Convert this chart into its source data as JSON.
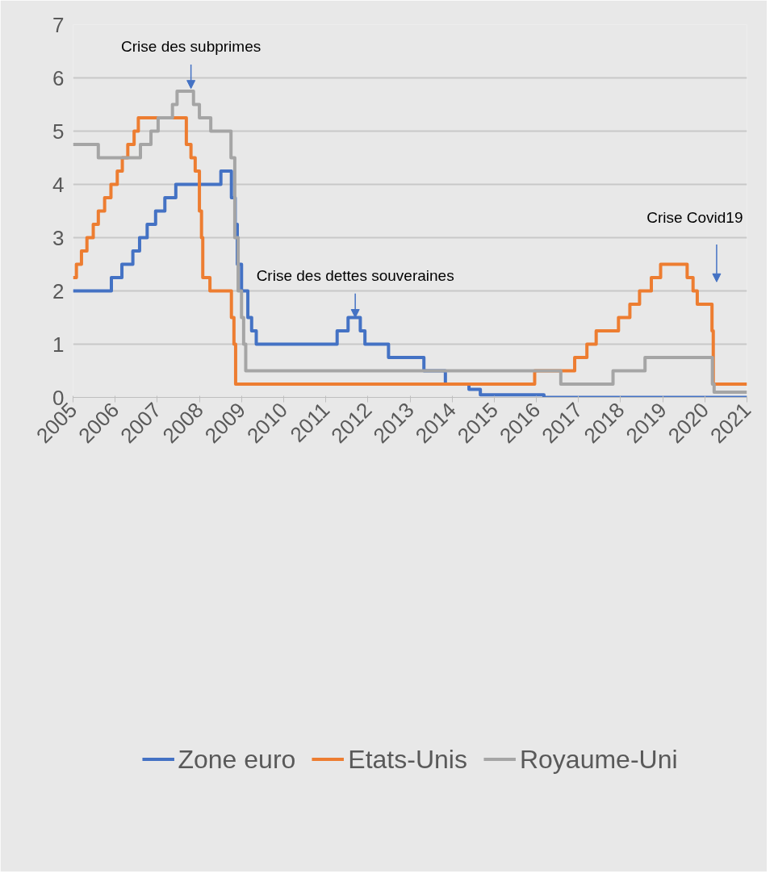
{
  "chart_data": {
    "type": "step",
    "xlim": [
      2005,
      2021
    ],
    "ylim": [
      0,
      7
    ],
    "xticks": [
      2005,
      2006,
      2007,
      2008,
      2009,
      2010,
      2011,
      2012,
      2013,
      2014,
      2015,
      2016,
      2017,
      2018,
      2019,
      2020,
      2021
    ],
    "yticks": [
      0,
      1,
      2,
      3,
      4,
      5,
      6,
      7
    ],
    "grid": "y",
    "legend": "bottom",
    "line_style": "solid",
    "marker": "none",
    "annotations": [
      {
        "text": "Crise des subprimes",
        "x": 2007.8,
        "y": 5.8
      },
      {
        "text": "Crise des dettes souveraines",
        "x": 2011.7,
        "y": 1.5
      },
      "Crise Covid19"
    ],
    "series": [
      {
        "name": "Zone euro",
        "color": "#4472c4",
        "x": [
          2005,
          2005.91,
          2006.16,
          2006.42,
          2006.58,
          2006.76,
          2006.96,
          2007.18,
          2007.44,
          2008.51,
          2008.76,
          2008.85,
          2008.9,
          2009.0,
          2009.15,
          2009.24,
          2009.35,
          2011.27,
          2011.53,
          2011.82,
          2011.93,
          2012.49,
          2013.33,
          2013.84,
          2014.4,
          2014.67,
          2016.18,
          2021
        ],
        "values": [
          2.0,
          2.25,
          2.5,
          2.75,
          3.0,
          3.25,
          3.5,
          3.75,
          4.0,
          4.25,
          3.75,
          3.25,
          2.5,
          2.0,
          1.5,
          1.25,
          1.0,
          1.25,
          1.5,
          1.25,
          1.0,
          0.75,
          0.5,
          0.25,
          0.15,
          0.05,
          0.0,
          0.0
        ]
      },
      {
        "name": "Etats-Unis",
        "color": "#ed7d31",
        "x": [
          2005,
          2005.08,
          2005.2,
          2005.33,
          2005.48,
          2005.6,
          2005.75,
          2005.9,
          2006.05,
          2006.17,
          2006.3,
          2006.45,
          2006.55,
          2007.69,
          2007.8,
          2007.9,
          2008.0,
          2008.05,
          2008.08,
          2008.25,
          2008.33,
          2008.76,
          2008.82,
          2008.86,
          2008.96,
          2015.96,
          2016.91,
          2017.2,
          2017.42,
          2017.95,
          2018.22,
          2018.45,
          2018.73,
          2018.95,
          2019.58,
          2019.72,
          2019.82,
          2020.17,
          2020.2,
          2020.22,
          2021
        ],
        "values": [
          2.25,
          2.5,
          2.75,
          3.0,
          3.25,
          3.5,
          3.75,
          4.0,
          4.25,
          4.5,
          4.75,
          5.0,
          5.25,
          4.75,
          4.5,
          4.25,
          3.5,
          3.0,
          2.25,
          2.0,
          2.0,
          1.5,
          1.0,
          0.25,
          0.25,
          0.5,
          0.75,
          1.0,
          1.25,
          1.5,
          1.75,
          2.0,
          2.25,
          2.5,
          2.25,
          2.0,
          1.75,
          1.25,
          0.25,
          0.25,
          0.25
        ]
      },
      {
        "name": "Royaume-Uni",
        "color": "#a5a5a5",
        "x": [
          2005,
          2005.6,
          2006.6,
          2006.85,
          2007.02,
          2007.36,
          2007.47,
          2007.86,
          2008.0,
          2008.27,
          2008.75,
          2008.84,
          2008.92,
          2009.0,
          2009.05,
          2009.1,
          2009.18,
          2016.58,
          2017.82,
          2018.58,
          2020.18,
          2020.22,
          2021
        ],
        "values": [
          4.75,
          4.5,
          4.75,
          5.0,
          5.25,
          5.5,
          5.75,
          5.5,
          5.25,
          5.0,
          4.5,
          3.0,
          2.0,
          1.5,
          1.0,
          0.5,
          0.5,
          0.25,
          0.5,
          0.75,
          0.25,
          0.1,
          0.1
        ]
      }
    ]
  }
}
